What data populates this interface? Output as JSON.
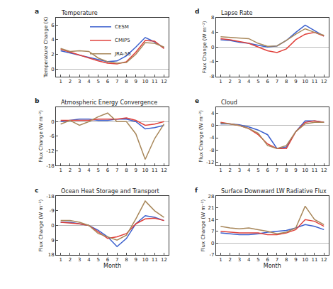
{
  "chart_data": [
    {
      "type": "line",
      "panel": "a",
      "title": "Temperature",
      "y_label": "Temperature Change (K)",
      "x": [
        1,
        2,
        3,
        4,
        5,
        6,
        7,
        8,
        9,
        10,
        11,
        12
      ],
      "xlim": [
        0.5,
        12.5
      ],
      "xticks": [
        1,
        2,
        3,
        4,
        5,
        6,
        7,
        8,
        9,
        10,
        11,
        12
      ],
      "ylim": [
        -1,
        7
      ],
      "yticks": [
        0,
        2,
        4,
        6
      ],
      "legend": "top",
      "series": [
        {
          "name": "CESM",
          "color": "#3a5fcd",
          "values": [
            2.5,
            2.2,
            1.9,
            1.6,
            1.3,
            1.0,
            1.1,
            1.8,
            3.0,
            4.3,
            3.7,
            2.9
          ]
        },
        {
          "name": "CMIP5",
          "color": "#e0403a",
          "values": [
            2.7,
            2.3,
            1.9,
            1.5,
            1.1,
            0.8,
            0.7,
            1.0,
            2.3,
            3.9,
            3.8,
            2.8
          ]
        },
        {
          "name": "JRA-55",
          "color": "#a8875a",
          "values": [
            2.8,
            2.4,
            2.5,
            2.4,
            1.5,
            1.0,
            0.8,
            0.9,
            2.0,
            3.6,
            3.5,
            3.0
          ]
        }
      ]
    },
    {
      "type": "line",
      "panel": "b",
      "title": "Atmospheric Energy Convergence",
      "y_label": "Flux Change (W m⁻²)",
      "x": [
        1,
        2,
        3,
        4,
        5,
        6,
        7,
        8,
        9,
        10,
        11,
        12
      ],
      "xlim": [
        0.5,
        12.5
      ],
      "xticks": [
        1,
        2,
        3,
        4,
        5,
        6,
        7,
        8,
        9,
        10,
        11,
        12
      ],
      "ylim": [
        -18,
        6
      ],
      "yticks": [
        0,
        -6,
        -12,
        -18
      ],
      "series": [
        {
          "name": "CESM",
          "color": "#3a5fcd",
          "values": [
            0,
            0.5,
            1,
            1,
            0.5,
            0.5,
            1,
            1,
            0,
            -3,
            -2.5,
            -1.5
          ]
        },
        {
          "name": "CMIP5",
          "color": "#e0403a",
          "values": [
            0.5,
            0.5,
            0.5,
            0.5,
            1,
            1,
            1,
            1.5,
            0.5,
            -1.5,
            -1,
            0
          ]
        },
        {
          "name": "JRA-55",
          "color": "#a8875a",
          "values": [
            -1,
            0.5,
            -1.5,
            0,
            2,
            3.5,
            0,
            0,
            -5,
            -15.5,
            -7,
            -1
          ]
        }
      ]
    },
    {
      "type": "line",
      "panel": "c",
      "title": "Ocean Heat Storage and Transport",
      "y_label": "Flux Change (W m⁻²)",
      "x_label": "Month",
      "x": [
        1,
        2,
        3,
        4,
        5,
        6,
        7,
        8,
        9,
        10,
        11,
        12
      ],
      "xlim": [
        0.5,
        12.5
      ],
      "xticks": [
        1,
        2,
        3,
        4,
        5,
        6,
        7,
        8,
        9,
        10,
        11,
        12
      ],
      "ylim": [
        18,
        -18
      ],
      "yticks": [
        -18,
        -9,
        0,
        9,
        18
      ],
      "series": [
        {
          "name": "CESM",
          "color": "#3a5fcd",
          "values": [
            -2,
            -2,
            -1,
            0,
            3,
            7,
            13,
            8,
            -1,
            -6,
            -5,
            -3
          ]
        },
        {
          "name": "CMIP5",
          "color": "#e0403a",
          "values": [
            -2,
            -1.5,
            -1,
            0,
            4,
            8,
            7,
            5,
            -1,
            -4,
            -4.5,
            -3
          ]
        },
        {
          "name": "JRA-55",
          "color": "#a8875a",
          "values": [
            -3,
            -3,
            -2,
            0,
            5,
            7,
            9,
            6,
            -4,
            -15,
            -9,
            -5
          ]
        }
      ]
    },
    {
      "type": "line",
      "panel": "d",
      "title": "Lapse Rate",
      "y_label": "Flux Change (W m⁻²)",
      "x": [
        1,
        2,
        3,
        4,
        5,
        6,
        7,
        8,
        9,
        10,
        11,
        12
      ],
      "xlim": [
        0.5,
        12.5
      ],
      "xticks": [
        1,
        2,
        3,
        4,
        5,
        6,
        7,
        8,
        9,
        10,
        11,
        12
      ],
      "ylim": [
        -8,
        8
      ],
      "yticks": [
        -8,
        -4,
        0,
        4,
        8
      ],
      "series": [
        {
          "name": "CESM",
          "color": "#3a5fcd",
          "values": [
            2,
            1.8,
            1.3,
            1,
            0.5,
            0,
            0.3,
            1.8,
            4,
            6,
            4.5,
            3
          ]
        },
        {
          "name": "CMIP5",
          "color": "#e0403a",
          "values": [
            2.3,
            2,
            1.5,
            1,
            0,
            -1,
            -1.5,
            -0.5,
            2,
            3.5,
            4,
            3
          ]
        },
        {
          "name": "JRA-55",
          "color": "#a8875a",
          "values": [
            2.8,
            2.6,
            2.4,
            2.3,
            1,
            0.2,
            0.3,
            1.8,
            3.5,
            5,
            4,
            3.2
          ]
        }
      ]
    },
    {
      "type": "line",
      "panel": "e",
      "title": "Cloud",
      "y_label": "Flux Change (W m⁻²)",
      "x": [
        1,
        2,
        3,
        4,
        5,
        6,
        7,
        8,
        9,
        10,
        11,
        12
      ],
      "xlim": [
        0.5,
        12.5
      ],
      "xticks": [
        1,
        2,
        3,
        4,
        5,
        6,
        7,
        8,
        9,
        10,
        11,
        12
      ],
      "ylim": [
        -13,
        6
      ],
      "yticks": [
        -12,
        -8,
        -4,
        0,
        4
      ],
      "series": [
        {
          "name": "CESM",
          "color": "#3a5fcd",
          "values": [
            0.5,
            0.5,
            0.2,
            -0.5,
            -1.5,
            -3,
            -7.5,
            -7,
            -2,
            1.5,
            1.5,
            1
          ]
        },
        {
          "name": "CMIP5",
          "color": "#e0403a",
          "values": [
            1,
            0.5,
            0,
            -1,
            -3,
            -6,
            -7.5,
            -7.5,
            -2,
            1,
            1.5,
            1
          ]
        },
        {
          "name": "JRA-55",
          "color": "#a8875a",
          "values": [
            0.8,
            0.5,
            0,
            -1,
            -2.5,
            -6.5,
            -7.5,
            -6.5,
            -2,
            0.5,
            1,
            1
          ]
        }
      ]
    },
    {
      "type": "line",
      "panel": "f",
      "title": "Surface Downward LW Radiative Flux",
      "y_label": "Flux Change (W m⁻²)",
      "x_label": "Month",
      "x": [
        1,
        2,
        3,
        4,
        5,
        6,
        7,
        8,
        9,
        10,
        11,
        12
      ],
      "xlim": [
        0.5,
        12.5
      ],
      "xticks": [
        1,
        2,
        3,
        4,
        5,
        6,
        7,
        8,
        9,
        10,
        11,
        12
      ],
      "ylim": [
        -7,
        28
      ],
      "yticks": [
        -7,
        0,
        7,
        14,
        21,
        28
      ],
      "series": [
        {
          "name": "CESM",
          "color": "#3a5fcd",
          "values": [
            6,
            5.5,
            5,
            5,
            5.5,
            6.5,
            7,
            7.5,
            9,
            11,
            10,
            8
          ]
        },
        {
          "name": "CMIP5",
          "color": "#e0403a",
          "values": [
            7,
            6.5,
            6,
            6,
            6,
            5,
            5,
            6,
            8,
            14,
            13,
            10
          ]
        },
        {
          "name": "JRA-55",
          "color": "#a8875a",
          "values": [
            10,
            9,
            8.5,
            9,
            8,
            7,
            5.5,
            6.5,
            9,
            22,
            14,
            11
          ]
        }
      ]
    }
  ]
}
